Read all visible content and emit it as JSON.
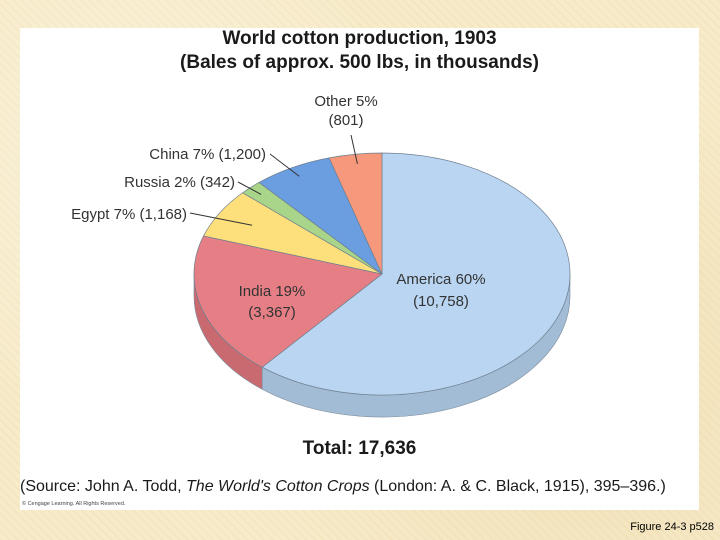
{
  "chart_data": {
    "type": "pie",
    "title": "World cotton production, 1903",
    "subtitle": "(Bales of approx. 500 lbs, in thousands)",
    "slices": [
      {
        "name": "America",
        "percent": 60,
        "value": 10758,
        "label_line1": "America 60%",
        "label_line2": "(10,758)",
        "color": "#b9d5f2",
        "side_color": "#a3bcd6"
      },
      {
        "name": "India",
        "percent": 19,
        "value": 3367,
        "label_line1": "India 19%",
        "label_line2": "(3,367)",
        "color": "#e57f85",
        "side_color": "#c96a70"
      },
      {
        "name": "Egypt",
        "percent": 7,
        "value": 1168,
        "label": "Egypt 7% (1,168)",
        "color": "#fde07c",
        "side_color": "#e2c66a"
      },
      {
        "name": "Russia",
        "percent": 2,
        "value": 342,
        "label": "Russia 2% (342)",
        "color": "#a8d58a",
        "side_color": "#8fbb73"
      },
      {
        "name": "China",
        "percent": 7,
        "value": 1200,
        "label": "China 7% (1,200)",
        "color": "#6a9ee0",
        "side_color": "#5887c4"
      },
      {
        "name": "Other",
        "percent": 5,
        "value": 801,
        "label_line1": "Other 5%",
        "label_line2": "(801)",
        "color": "#f5987c",
        "side_color": "#d98268"
      }
    ],
    "total_label": "Total: 17,636"
  },
  "source": {
    "prefix": "(Source: John A. Todd, ",
    "book": "The World's Cotton Crops",
    "suffix": " (London: A. & C. Black, 1915), 395–396.)"
  },
  "copyright": "© Cengage Learning. All Rights Reserved.",
  "figure_caption": "Figure 24-3 p528"
}
